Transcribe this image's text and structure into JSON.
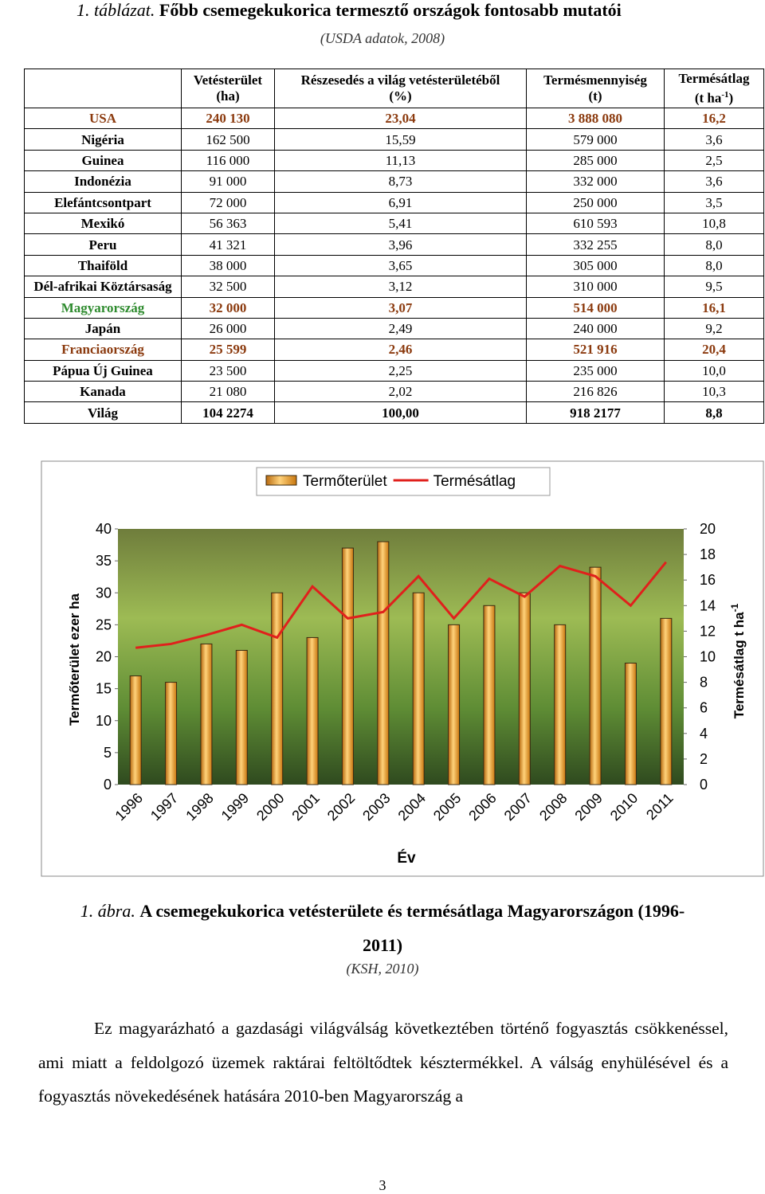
{
  "table_title": {
    "number": "1. táblázat.",
    "text": "Főbb csemegekukorica termesztő országok fontosabb mutatói"
  },
  "table_source": "(USDA adatok, 2008)",
  "table": {
    "header": [
      {
        "name": "Vetésterület",
        "unit": "(ha)"
      },
      {
        "name": "Részesedés a világ vetésterületéből",
        "unit": "(%)"
      },
      {
        "name": "Termésmennyiség",
        "unit": "(t)"
      },
      {
        "name": "Termésátlag",
        "unit": "(t ha",
        "unit_sup": "-1",
        "unit_end": ")"
      }
    ],
    "rows": [
      [
        "USA",
        "240 130",
        "23,04",
        "3 888 080",
        "16,2"
      ],
      [
        "Nigéria",
        "162 500",
        "15,59",
        "579 000",
        "3,6"
      ],
      [
        "Guinea",
        "116 000",
        "11,13",
        "285 000",
        "2,5"
      ],
      [
        "Indonézia",
        "91 000",
        "8,73",
        "332 000",
        "3,6"
      ],
      [
        "Elefántcsontpart",
        "72 000",
        "6,91",
        "250 000",
        "3,5"
      ],
      [
        "Mexikó",
        "56 363",
        "5,41",
        "610 593",
        "10,8"
      ],
      [
        "Peru",
        "41 321",
        "3,96",
        "332 255",
        "8,0"
      ],
      [
        "Thaiföld",
        "38 000",
        "3,65",
        "305 000",
        "8,0"
      ],
      [
        "Dél-afrikai Köztársaság",
        "32 500",
        "3,12",
        "310 000",
        "9,5"
      ],
      [
        "Magyarország",
        "32 000",
        "3,07",
        "514 000",
        "16,1"
      ],
      [
        "Japán",
        "26 000",
        "2,49",
        "240 000",
        "9,2"
      ],
      [
        "Franciaország",
        "25 599",
        "2,46",
        "521 916",
        "20,4"
      ],
      [
        "Pápua Új Guinea",
        "23 500",
        "2,25",
        "235 000",
        "10,0"
      ],
      [
        "Kanada",
        "21 080",
        "2,02",
        "216 826",
        "10,3"
      ],
      [
        "Világ",
        "104 2274",
        "100,00",
        "918 2177",
        "8,8"
      ]
    ]
  },
  "chart_data": {
    "type": "bar",
    "categories": [
      "1996",
      "1997",
      "1998",
      "1999",
      "2000",
      "2001",
      "2002",
      "2003",
      "2004",
      "2005",
      "2006",
      "2007",
      "2008",
      "2009",
      "2010",
      "2011"
    ],
    "series": [
      {
        "name": "Termőterület",
        "type": "bar",
        "color": "#f39c1e",
        "values": [
          17,
          16,
          22,
          21,
          30,
          23,
          37,
          38,
          30,
          25,
          28,
          30,
          25,
          34,
          19,
          26
        ]
      },
      {
        "name": "Termésátlag",
        "type": "line",
        "axis": "y2",
        "color": "#e0201c",
        "values": [
          10.7,
          11,
          11.7,
          12.5,
          11.5,
          15.5,
          13,
          13.5,
          16.3,
          13,
          16.1,
          14.7,
          17.1,
          16.3,
          14,
          17.4
        ]
      }
    ],
    "ylim": [
      0,
      40
    ],
    "yticks": [
      0,
      5,
      10,
      15,
      20,
      25,
      30,
      35,
      40
    ],
    "y2lim": [
      0,
      20
    ],
    "y2ticks": [
      0,
      2,
      4,
      6,
      8,
      10,
      12,
      14,
      16,
      18,
      20
    ],
    "x_label": "Év",
    "y_label": "Termőterület ezer ha",
    "y2_label": "Termésátlag t ha",
    "y2_label_sup": "-1",
    "legend": "top"
  },
  "figure_caption": {
    "number": "1. ábra.",
    "title_line1": "A csemegekukorica vetésterülete és termésátlaga Magyarországon (1996-",
    "title_line2": "2011)"
  },
  "figure_source": "(KSH, 2010)",
  "body_text": "Ez magyarázható a gazdasági világválság következtében történő fogyasztás csökkenéssel, ami miatt a feldolgozó üzemek raktárai feltöltődtek késztermékkel. A válság enyhülésével és a fogyasztás növekedésének hatására 2010-ben Magyarország a",
  "page_number": "3"
}
